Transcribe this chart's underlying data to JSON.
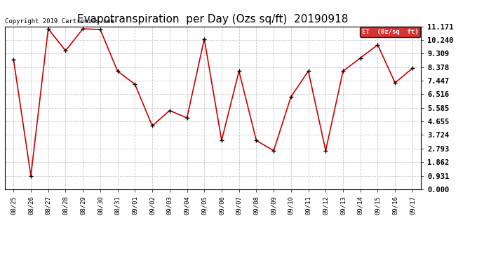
{
  "title": "Evapotranspiration  per Day (Ozs sq/ft)  20190918",
  "copyright": "Copyright 2019 Cartronics.com",
  "legend_label": "ET  (0z/sq  ft)",
  "x_labels": [
    "08/25",
    "08/26",
    "08/27",
    "08/28",
    "08/29",
    "08/30",
    "08/31",
    "09/01",
    "09/02",
    "09/03",
    "09/04",
    "09/05",
    "09/06",
    "09/07",
    "09/08",
    "09/09",
    "09/10",
    "09/11",
    "09/12",
    "09/13",
    "09/14",
    "09/15",
    "09/16",
    "09/17"
  ],
  "y_values": [
    8.9,
    0.93,
    11.0,
    9.5,
    11.0,
    10.95,
    8.1,
    7.2,
    4.35,
    5.4,
    4.9,
    10.3,
    3.35,
    8.1,
    3.35,
    2.65,
    6.35,
    8.1,
    2.65,
    8.1,
    9.0,
    9.9,
    7.3,
    8.3
  ],
  "y_ticks": [
    0.0,
    0.931,
    1.862,
    2.793,
    3.724,
    4.655,
    5.585,
    6.516,
    7.447,
    8.378,
    9.309,
    10.24,
    11.171
  ],
  "y_min": 0.0,
  "y_max": 11.171,
  "line_color": "#cc0000",
  "marker_color": "#000000",
  "bg_color": "#ffffff",
  "grid_color": "#c8c8c8",
  "title_fontsize": 11,
  "copyright_fontsize": 6.5,
  "legend_bg": "#cc0000",
  "legend_text_color": "#ffffff",
  "tick_fontsize": 7.5,
  "xtick_fontsize": 6.5
}
